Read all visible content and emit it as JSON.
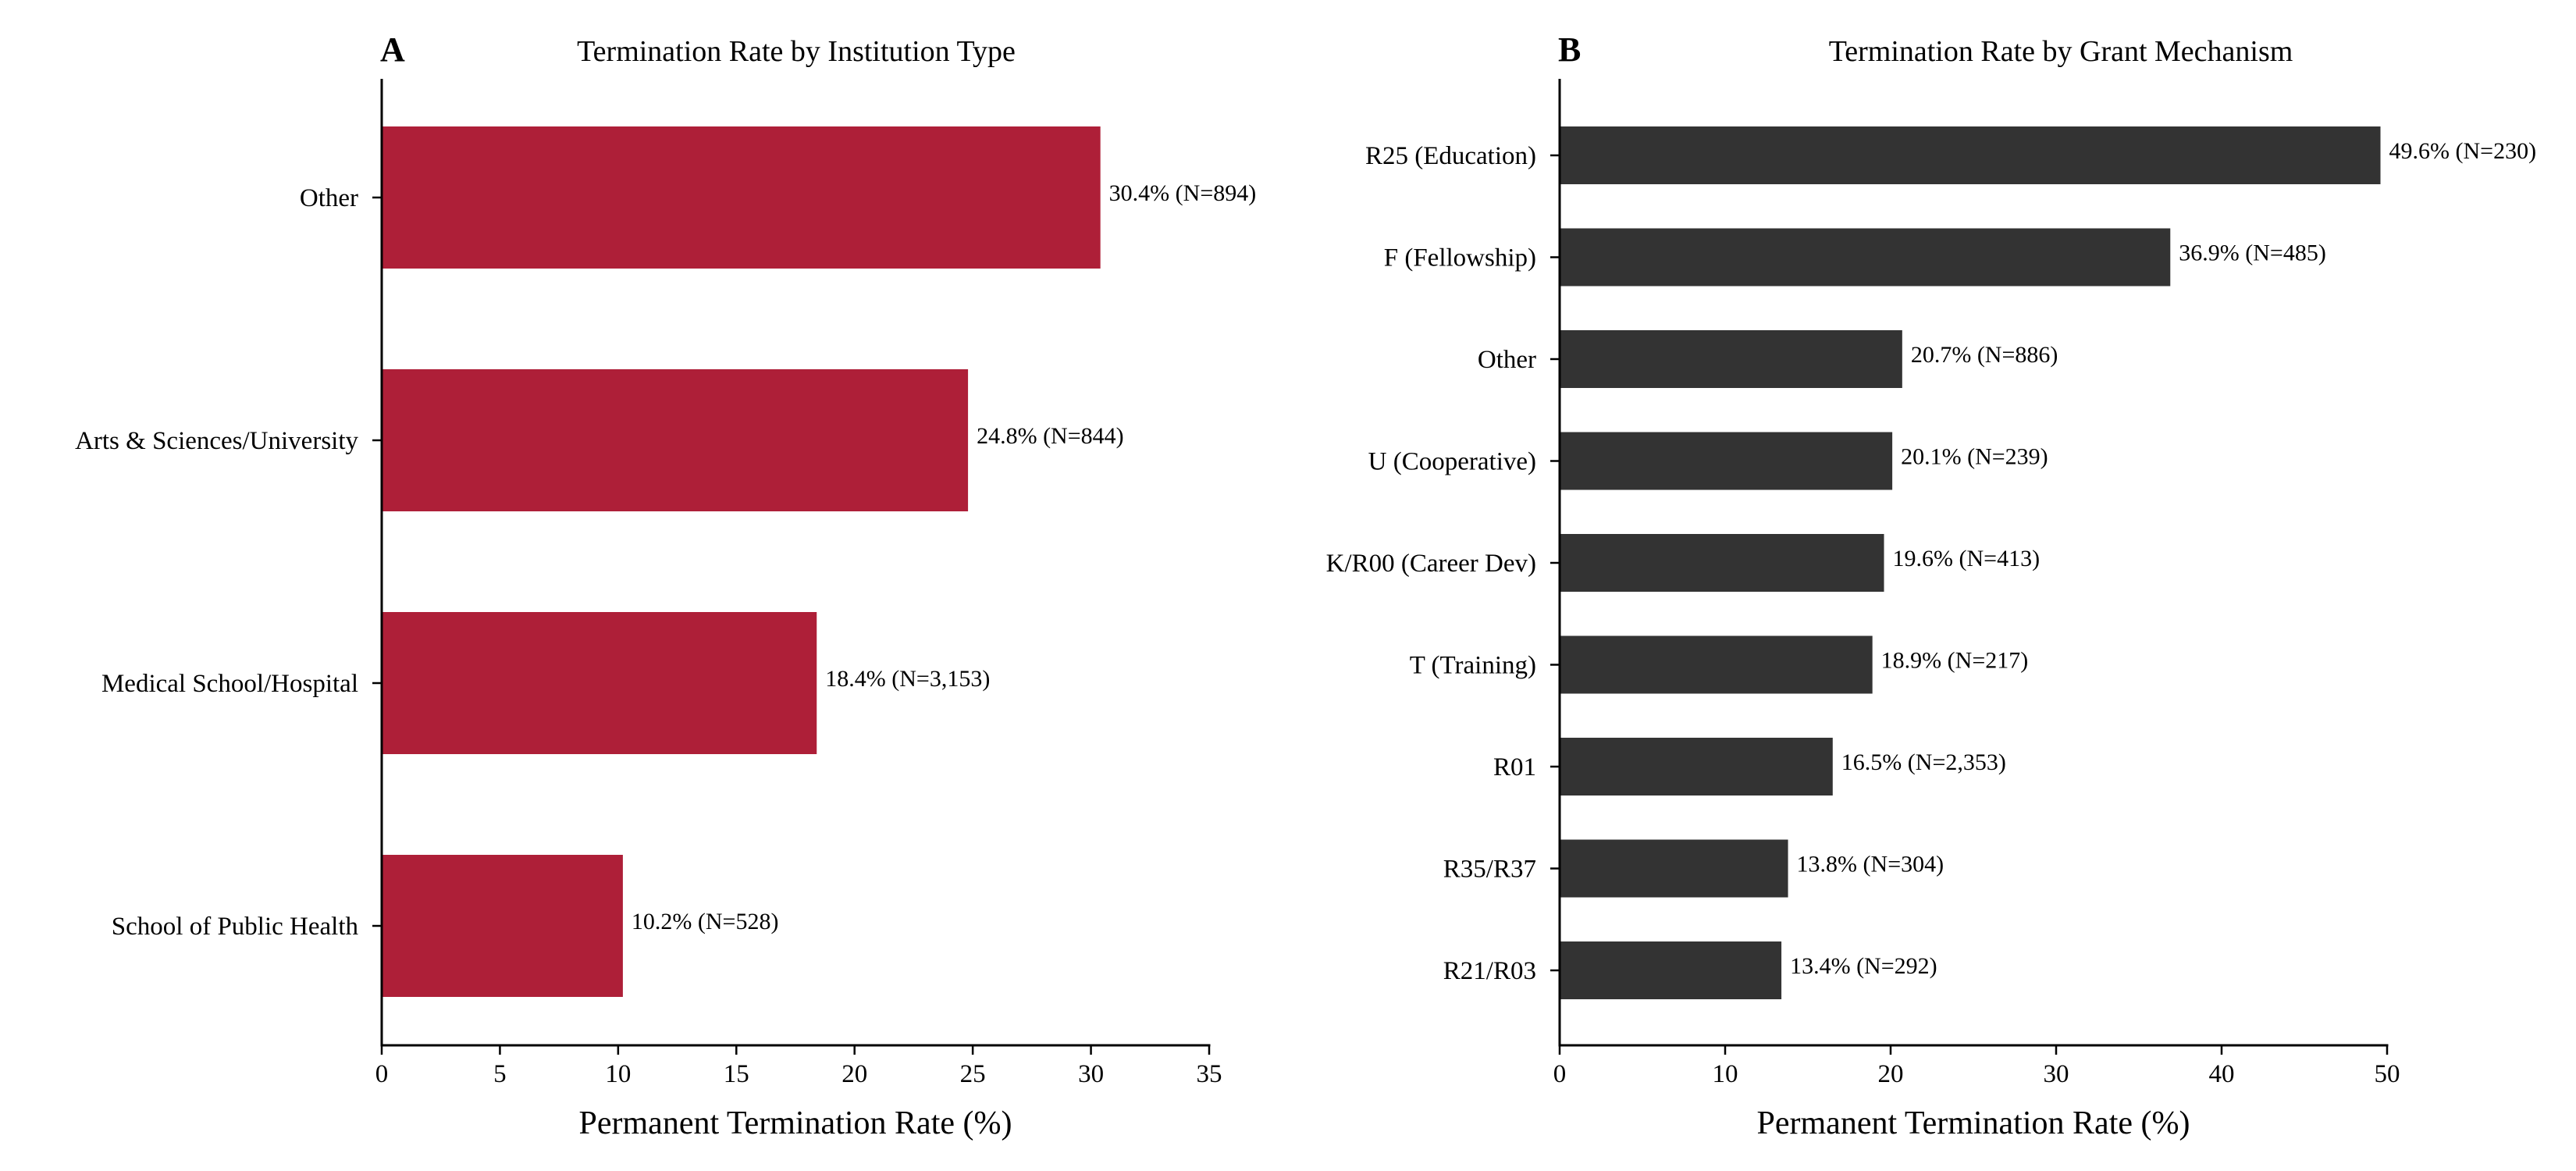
{
  "chart_data": [
    {
      "panel": "A",
      "type": "bar",
      "orientation": "horizontal",
      "title": "Termination Rate by Institution Type",
      "xlabel": "Permanent Termination Rate (%)",
      "ylabel": "",
      "xlim": [
        0,
        35
      ],
      "xticks": [
        0,
        5,
        10,
        15,
        20,
        25,
        30,
        35
      ],
      "bar_color": "#AE1F38",
      "categories": [
        "Other",
        "Arts & Sciences/University",
        "Medical School/Hospital",
        "School of Public Health"
      ],
      "values": [
        30.4,
        24.8,
        18.4,
        10.2
      ],
      "labels": [
        "30.4% (N=894)",
        "24.8% (N=844)",
        "18.4% (N=3,153)",
        "10.2% (N=528)"
      ]
    },
    {
      "panel": "B",
      "type": "bar",
      "orientation": "horizontal",
      "title": "Termination Rate by Grant Mechanism",
      "xlabel": "Permanent Termination Rate (%)",
      "ylabel": "",
      "xlim": [
        0,
        50
      ],
      "xticks": [
        0,
        10,
        20,
        30,
        40,
        50
      ],
      "bar_color": "#333333",
      "categories": [
        "R25 (Education)",
        "F (Fellowship)",
        "Other",
        "U (Cooperative)",
        "K/R00 (Career Dev)",
        "T (Training)",
        "R01",
        "R35/R37",
        "R21/R03"
      ],
      "values": [
        49.6,
        36.9,
        20.7,
        20.1,
        19.6,
        18.9,
        16.5,
        13.8,
        13.4
      ],
      "labels": [
        "49.6% (N=230)",
        "36.9% (N=485)",
        "20.7% (N=886)",
        "20.1% (N=239)",
        "19.6% (N=413)",
        "18.9% (N=217)",
        "16.5% (N=2,353)",
        "13.8% (N=304)",
        "13.4% (N=292)"
      ]
    }
  ]
}
